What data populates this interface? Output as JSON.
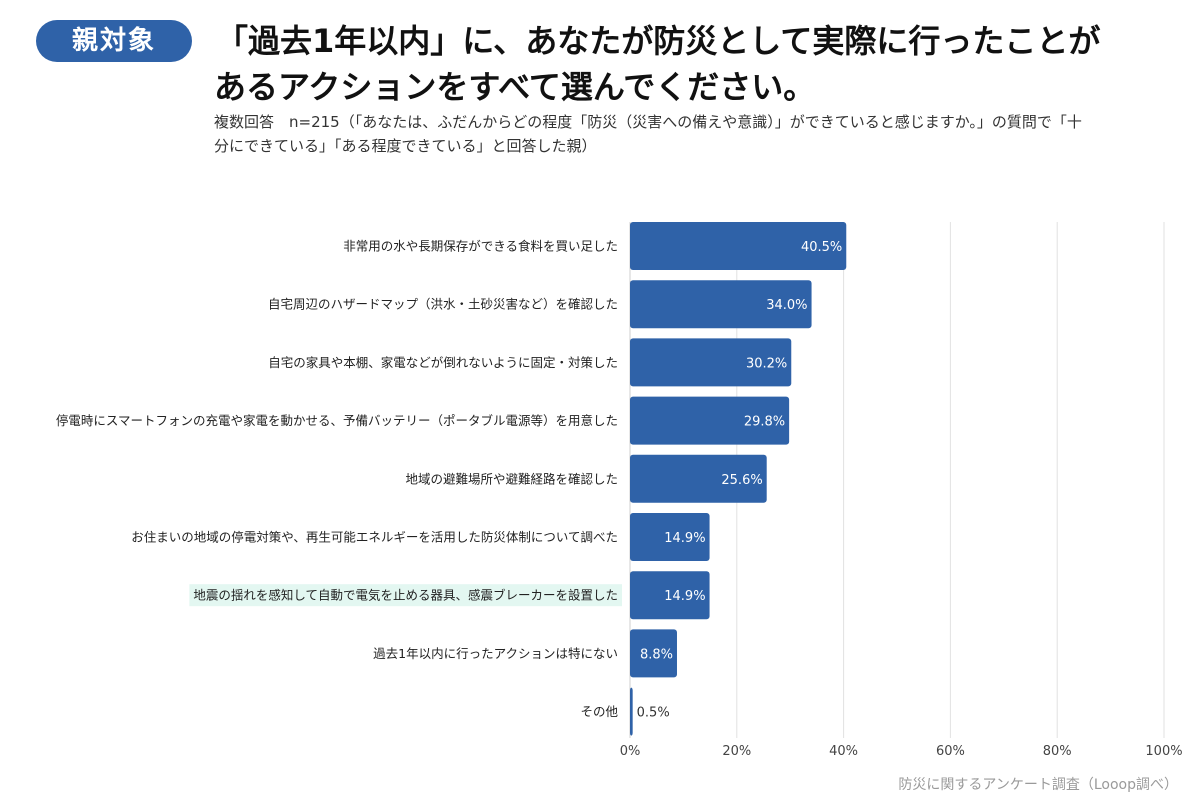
{
  "badge": "親対象",
  "title_line1": "「過去1年以内」に、あなたが防災として実際に行ったことが",
  "title_line2": "あるアクションをすべて選んでください。",
  "subtitle_line1": "複数回答　n=215（「あなたは、ふだんからどの程度「防災（災害への備えや意識）」ができていると感じますか。」の質問で「十",
  "subtitle_line2": "分にできている」「ある程度できている」と回答した親）",
  "source": "防災に関するアンケート調査（Looop調べ）",
  "colors": {
    "bar": "#2f62a8",
    "highlight": "#e3f7f1",
    "grid": "#e2e2e2",
    "badge": "#2f62a8"
  },
  "chart_data": {
    "type": "bar",
    "orientation": "horizontal",
    "categories": [
      "非常用の水や長期保存ができる食料を買い足した",
      "自宅周辺のハザードマップ（洪水・土砂災害など）を確認した",
      "自宅の家具や本棚、家電などが倒れないように固定・対策した",
      "停電時にスマートフォンの充電や家電を動かせる、予備バッテリー（ポータブル電源等）を用意した",
      "地域の避難場所や避難経路を確認した",
      "お住まいの地域の停電対策や、再生可能エネルギーを活用した防災体制について調べた",
      "地震の揺れを感知して自動で電気を止める器具、感震ブレーカーを設置した",
      "過去1年以内に行ったアクションは特にない",
      "その他"
    ],
    "values": [
      40.5,
      34.0,
      30.2,
      29.8,
      25.6,
      14.9,
      14.9,
      8.8,
      0.5
    ],
    "value_labels": [
      "40.5%",
      "34.0%",
      "30.2%",
      "29.8%",
      "25.6%",
      "14.9%",
      "14.9%",
      "8.8%",
      "0.5%"
    ],
    "highlighted_category": "地震の揺れを感知して自動で電気を止める器具、感震ブレーカーを設置した",
    "xlim": [
      0,
      100
    ],
    "xticks": [
      "0%",
      "20%",
      "40%",
      "60%",
      "80%",
      "100%"
    ],
    "xtick_values": [
      0,
      20,
      40,
      60,
      80,
      100
    ],
    "grid": true
  }
}
